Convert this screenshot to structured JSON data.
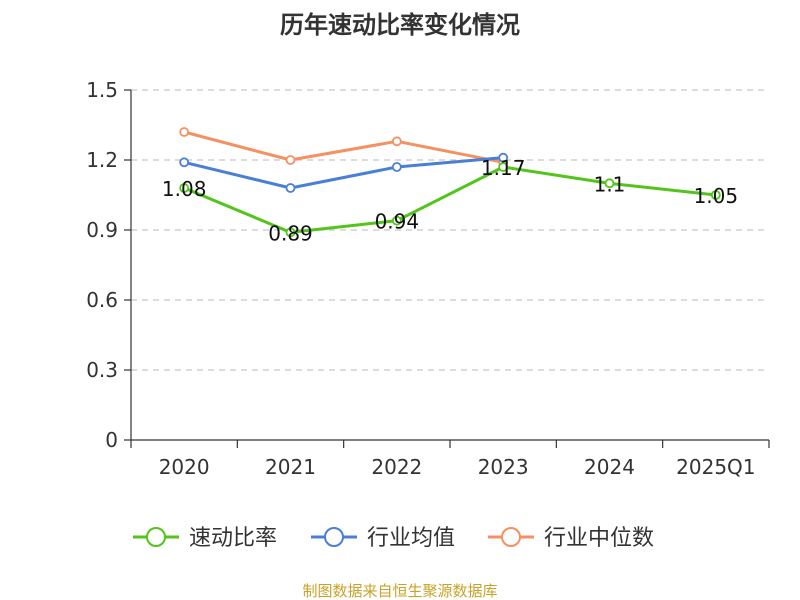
{
  "chart_data": {
    "type": "line",
    "title": "历年速动比率变化情况",
    "categories": [
      "2020",
      "2021",
      "2022",
      "2023",
      "2024",
      "2025Q1"
    ],
    "yticks": [
      "0",
      "0.3",
      "0.6",
      "0.9",
      "1.2",
      "1.5"
    ],
    "ylim": [
      0,
      1.5
    ],
    "grid": true,
    "legend_position": "bottom",
    "series": [
      {
        "name": "速动比率",
        "color": "#52c41a",
        "values": [
          1.08,
          0.89,
          0.94,
          1.17,
          1.1,
          1.05
        ],
        "labels": [
          "1.08",
          "0.89",
          "0.94",
          "1.17",
          "1.1",
          "1.05"
        ]
      },
      {
        "name": "行业均值",
        "color": "#4a7fd6",
        "values": [
          1.19,
          1.08,
          1.17,
          1.21,
          null,
          null
        ]
      },
      {
        "name": "行业中位数",
        "color": "#f59160",
        "values": [
          1.32,
          1.2,
          1.28,
          1.19,
          null,
          null
        ]
      }
    ],
    "source": "制图数据来自恒生聚源数据库"
  }
}
